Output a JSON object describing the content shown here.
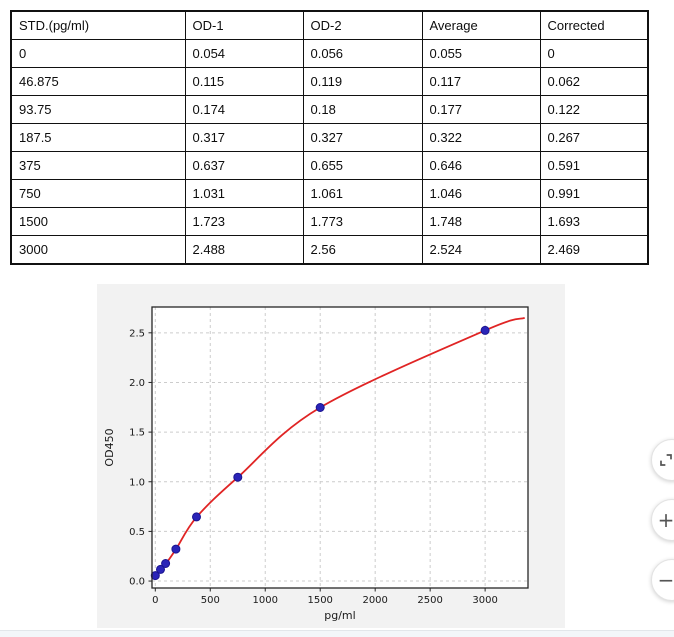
{
  "table": {
    "headers": [
      "STD.(pg/ml)",
      "OD-1",
      "OD-2",
      "Average",
      "Corrected"
    ],
    "rows": [
      [
        "0",
        "0.054",
        "0.056",
        "0.055",
        "0"
      ],
      [
        "46.875",
        "0.115",
        "0.119",
        "0.117",
        "0.062"
      ],
      [
        "93.75",
        "0.174",
        "0.18",
        "0.177",
        "0.122"
      ],
      [
        "187.5",
        "0.317",
        "0.327",
        "0.322",
        "0.267"
      ],
      [
        "375",
        "0.637",
        "0.655",
        "0.646",
        "0.591"
      ],
      [
        "750",
        "1.031",
        "1.061",
        "1.046",
        "0.991"
      ],
      [
        "1500",
        "1.723",
        "1.773",
        "1.748",
        "1.693"
      ],
      [
        "3000",
        "2.488",
        "2.56",
        "2.524",
        "2.469"
      ]
    ]
  },
  "chart_data": {
    "type": "scatter",
    "title": "",
    "xlabel": "pg/ml",
    "ylabel": "OD450",
    "x": [
      0,
      46.875,
      93.75,
      187.5,
      375,
      750,
      1500,
      3000
    ],
    "y": [
      0.055,
      0.117,
      0.177,
      0.322,
      0.646,
      1.046,
      1.748,
      2.524
    ],
    "fit_points": [
      [
        -30,
        0.025
      ],
      [
        0,
        0.05
      ],
      [
        46.875,
        0.11
      ],
      [
        93.75,
        0.17
      ],
      [
        187.5,
        0.32
      ],
      [
        375,
        0.643
      ],
      [
        750,
        1.045
      ],
      [
        1500,
        1.748
      ],
      [
        3000,
        2.524
      ],
      [
        3360,
        2.65
      ]
    ],
    "xticks": [
      0,
      500,
      1000,
      1500,
      2000,
      2500,
      3000
    ],
    "xtick_labels": [
      "0",
      "500",
      "1000",
      "1500",
      "2000",
      "2500",
      "3000"
    ],
    "yticks": [
      0.0,
      0.5,
      1.0,
      1.5,
      2.0,
      2.5
    ],
    "ytick_labels": [
      "0.0",
      "0.5",
      "1.0",
      "1.5",
      "2.0",
      "2.5"
    ],
    "xlim": [
      -30,
      3390
    ],
    "ylim": [
      -0.07,
      2.76
    ],
    "grid": true,
    "legend": null,
    "colors": {
      "curve": "#e02424",
      "points": "#2a24b8",
      "point_edge": "#1a1490",
      "grid": "#cccccc",
      "frame": "#262626",
      "plot_bg": "#ffffff",
      "figure_bg": "#f2f2f2",
      "tick_text": "#1a1a1a"
    }
  },
  "viewer_controls": {
    "fit_label": "fit to screen",
    "zoom_in_glyph": "+",
    "zoom_out_glyph": "−"
  }
}
